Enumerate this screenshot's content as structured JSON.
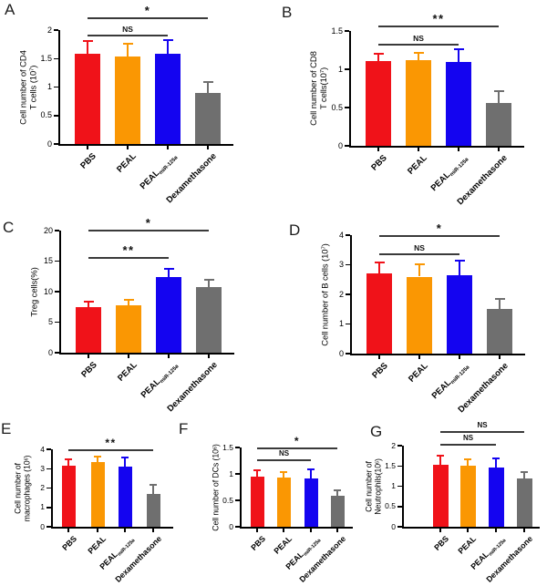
{
  "chart_data": [
    {
      "panel": "A",
      "type": "bar",
      "ylabel_lines": [
        "Cell number of CD4",
        "T cells (10^7)"
      ],
      "ylim": [
        0,
        2
      ],
      "yticks": [
        "0",
        "0.5",
        "1",
        "1.5",
        "2"
      ],
      "categories": [
        "PBS",
        "PEAL",
        "PEAL_{miR-125a}",
        "Dexamethasone"
      ],
      "values": [
        1.58,
        1.53,
        1.58,
        0.9
      ],
      "errors_sd": [
        0.24,
        0.24,
        0.25,
        0.2
      ],
      "bar_colors": [
        "#f01219",
        "#fa9703",
        "#1404f0",
        "#6f6f6f"
      ],
      "significance": [
        {
          "label": "NS",
          "from": 0,
          "to": 2,
          "dy": 5
        },
        {
          "label": "*",
          "from": 0,
          "to": 3,
          "dy": -14
        }
      ]
    },
    {
      "panel": "B",
      "type": "bar",
      "ylabel_lines": [
        "Cell number of CD8",
        "T cells(10^7)"
      ],
      "ylim": [
        0,
        1.5
      ],
      "yticks": [
        "0",
        "0.5",
        "1",
        "1.5"
      ],
      "categories": [
        "PBS",
        "PEAL",
        "PEAL_{miR-125a}",
        "Dexamethasone"
      ],
      "values": [
        1.11,
        1.12,
        1.09,
        0.56
      ],
      "errors_sd": [
        0.1,
        0.1,
        0.18,
        0.16
      ],
      "bar_colors": [
        "#f01219",
        "#fa9703",
        "#1404f0",
        "#6f6f6f"
      ],
      "significance": [
        {
          "label": "NS",
          "from": 0,
          "to": 2,
          "dy": 14
        },
        {
          "label": "**",
          "from": 0,
          "to": 3,
          "dy": -6
        }
      ]
    },
    {
      "panel": "C",
      "type": "bar",
      "ylabel_lines": [
        "Treg cells(%)"
      ],
      "ylim": [
        0,
        20
      ],
      "yticks": [
        "0",
        "5",
        "10",
        "15",
        "20"
      ],
      "categories": [
        "PBS",
        "PEAL",
        "PEAL_{miR-125a}",
        "Dexamethasone"
      ],
      "values": [
        7.4,
        7.7,
        12.4,
        10.7
      ],
      "errors_sd": [
        1.1,
        1.1,
        1.4,
        1.3
      ],
      "bar_colors": [
        "#f01219",
        "#fa9703",
        "#1404f0",
        "#6f6f6f"
      ],
      "significance": [
        {
          "label": "**",
          "from": 0,
          "to": 2,
          "dy": 29
        },
        {
          "label": "*",
          "from": 0,
          "to": 3,
          "dy": -1
        }
      ]
    },
    {
      "panel": "D",
      "type": "bar",
      "ylabel_lines": [
        "Cell number of B cells (10^7)"
      ],
      "ylim": [
        0,
        4
      ],
      "yticks": [
        "0",
        "1",
        "2",
        "3",
        "4"
      ],
      "categories": [
        "PBS",
        "PEAL",
        "PEAL_{miR-125a}",
        "Dexamethasone"
      ],
      "values": [
        2.7,
        2.6,
        2.65,
        1.52
      ],
      "errors_sd": [
        0.4,
        0.42,
        0.5,
        0.33
      ],
      "bar_colors": [
        "#f01219",
        "#fa9703",
        "#1404f0",
        "#6f6f6f"
      ],
      "significance": [
        {
          "label": "NS",
          "from": 0,
          "to": 2,
          "dy": 20
        },
        {
          "label": "*",
          "from": 0,
          "to": 3,
          "dy": 0
        }
      ]
    },
    {
      "panel": "E",
      "type": "bar",
      "ylabel_lines": [
        "Cell number of",
        "macrophages (10^6)"
      ],
      "ylim": [
        0,
        4
      ],
      "yticks": [
        "0",
        "1",
        "2",
        "3",
        "4"
      ],
      "categories": [
        "PBS",
        "PEAL",
        "PEAL_{miR-125a}",
        "Dexamethasone"
      ],
      "values": [
        3.15,
        3.35,
        3.1,
        1.7
      ],
      "errors_sd": [
        0.35,
        0.32,
        0.5,
        0.5
      ],
      "bar_colors": [
        "#f01219",
        "#fa9703",
        "#1404f0",
        "#6f6f6f"
      ],
      "significance": [
        {
          "label": "**",
          "from": 0,
          "to": 3,
          "dy": 0
        }
      ]
    },
    {
      "panel": "F",
      "type": "bar",
      "ylabel_lines": [
        "Cell number of DCs (10^6)"
      ],
      "ylim": [
        0,
        1.5
      ],
      "yticks": [
        "0",
        "0.5",
        "1",
        "1.5"
      ],
      "categories": [
        "PBS",
        "PEAL",
        "PEAL_{miR-125a}",
        "Dexamethasone"
      ],
      "values": [
        0.95,
        0.93,
        0.92,
        0.58
      ],
      "errors_sd": [
        0.13,
        0.12,
        0.18,
        0.11
      ],
      "bar_colors": [
        "#f01219",
        "#fa9703",
        "#1404f0",
        "#6f6f6f"
      ],
      "significance": [
        {
          "label": "NS",
          "from": 0,
          "to": 2,
          "dy": 13
        },
        {
          "label": "*",
          "from": 0,
          "to": 3,
          "dy": 0
        }
      ]
    },
    {
      "panel": "G",
      "type": "bar",
      "ylabel_lines": [
        "Cell number of",
        "Neutrophils(10^6)"
      ],
      "ylim": [
        0,
        2
      ],
      "yticks": [
        "0",
        "0.5",
        "1",
        "1.5",
        "2"
      ],
      "categories": [
        "PBS",
        "PEAL",
        "PEAL_{miR-125a}",
        "Dexamethasone"
      ],
      "values": [
        1.52,
        1.5,
        1.45,
        1.2
      ],
      "errors_sd": [
        0.25,
        0.18,
        0.25,
        0.15
      ],
      "bar_colors": [
        "#f01219",
        "#fa9703",
        "#1404f0",
        "#6f6f6f"
      ],
      "significance": [
        {
          "label": "NS",
          "from": 0,
          "to": 2,
          "dy": -2
        },
        {
          "label": "NS",
          "from": 0,
          "to": 3,
          "dy": -16
        }
      ]
    }
  ]
}
